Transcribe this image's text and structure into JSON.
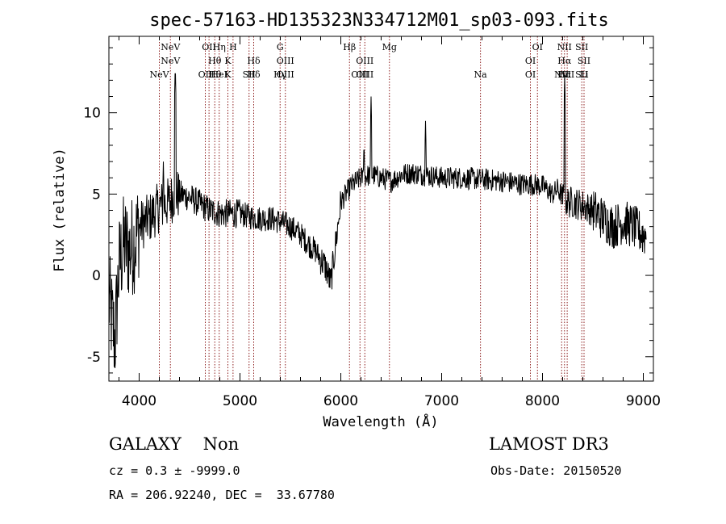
{
  "chart_data": {
    "type": "line",
    "title": "spec-57163-HD135323N334712M01_sp03-093.fits",
    "xlabel": "Wavelength (Å)",
    "ylabel": "Flux (relative)",
    "xlim": [
      3700,
      9100
    ],
    "ylim": [
      -6.5,
      14.7
    ],
    "xticks": [
      4000,
      5000,
      6000,
      7000,
      8000,
      9000
    ],
    "yticks": [
      -5,
      0,
      5,
      10
    ],
    "grid": false,
    "spectrum_anchors": {
      "x": [
        3700,
        3760,
        3800,
        3850,
        3900,
        3950,
        4000,
        4100,
        4200,
        4300,
        4350,
        4400,
        4500,
        4600,
        4700,
        4800,
        4900,
        5000,
        5100,
        5200,
        5300,
        5400,
        5500,
        5600,
        5700,
        5750,
        5800,
        5850,
        5900,
        5950,
        6000,
        6100,
        6200,
        6300,
        6400,
        6500,
        6600,
        6700,
        6800,
        6900,
        7000,
        7200,
        7400,
        7600,
        7800,
        7900,
        8000,
        8100,
        8150,
        8200,
        8250,
        8300,
        8400,
        8500,
        8600,
        8700,
        8800,
        8900,
        9000
      ],
      "y": [
        -1.5,
        -4.0,
        0.5,
        2.0,
        1.5,
        2.0,
        3.0,
        3.5,
        4.2,
        4.5,
        5.0,
        5.0,
        4.8,
        4.4,
        4.0,
        3.8,
        3.8,
        3.8,
        3.6,
        3.5,
        3.5,
        3.3,
        3.0,
        2.5,
        1.8,
        1.5,
        1.0,
        0.5,
        -0.5,
        2.0,
        4.5,
        5.5,
        6.0,
        6.2,
        6.0,
        5.8,
        6.2,
        6.3,
        6.2,
        6.1,
        6.0,
        6.0,
        5.9,
        5.8,
        5.6,
        5.6,
        5.5,
        5.0,
        5.3,
        4.8,
        4.5,
        4.5,
        4.3,
        4.0,
        3.5,
        3.0,
        3.3,
        3.0,
        2.5
      ]
    },
    "emission_spikes": [
      {
        "x": 4358,
        "y": 13.0
      },
      {
        "x": 6300,
        "y": 11.0
      },
      {
        "x": 6840,
        "y": 9.5
      },
      {
        "x": 8220,
        "y": 12.3
      },
      {
        "x": 6230,
        "y": 8.3
      },
      {
        "x": 4240,
        "y": 7.0
      }
    ],
    "lines": [
      {
        "x": 4200,
        "top": "",
        "bottom": "NeV"
      },
      {
        "x": 4310,
        "top": "NeV",
        "bottom": ""
      },
      {
        "x": 4656,
        "top": "",
        "bottom": "OII"
      },
      {
        "x": 4693,
        "top": "OII",
        "bottom": ""
      },
      {
        "x": 4750,
        "top": "",
        "bottom": "Hθ"
      },
      {
        "x": 4794,
        "top": "Hη",
        "bottom": "HeI"
      },
      {
        "x": 4880,
        "top": "",
        "bottom": "K"
      },
      {
        "x": 4931,
        "top": "H",
        "bottom": ""
      },
      {
        "x": 5090,
        "top": "",
        "bottom": "SII"
      },
      {
        "x": 5136,
        "top": "",
        "bottom": "Hδ"
      },
      {
        "x": 5398,
        "top": "G",
        "bottom": "Hγ"
      },
      {
        "x": 5450,
        "top": "",
        "bottom": "OIII"
      },
      {
        "x": 6086,
        "top": "Hβ",
        "bottom": ""
      },
      {
        "x": 6190,
        "top": "",
        "bottom": "OIII"
      },
      {
        "x": 6238,
        "top": "",
        "bottom": "OIII"
      },
      {
        "x": 6482,
        "top": "Mg",
        "bottom": ""
      },
      {
        "x": 7385,
        "top": "",
        "bottom": "Na"
      },
      {
        "x": 7880,
        "top": "",
        "bottom": "OI"
      },
      {
        "x": 7950,
        "top": "OI",
        "bottom": ""
      },
      {
        "x": 8190,
        "top": "",
        "bottom": "NII"
      },
      {
        "x": 8218,
        "top": "NII",
        "bottom": "Hα"
      },
      {
        "x": 8245,
        "top": "",
        "bottom": "NII"
      },
      {
        "x": 8390,
        "top": "SII",
        "bottom": "SII"
      },
      {
        "x": 8412,
        "top": "",
        "bottom": "Li"
      }
    ]
  },
  "info": {
    "class_line": "GALAXY    Non",
    "survey": "LAMOST DR3",
    "cz": "cz = 0.3 ± -9999.0",
    "obs_date": "Obs-Date: 20150520",
    "radec": "RA = 206.92240, DEC =  33.67780"
  },
  "colors": {
    "spectrum": "#000000",
    "line_marker": "#8b1a1a",
    "axis": "#000000"
  }
}
